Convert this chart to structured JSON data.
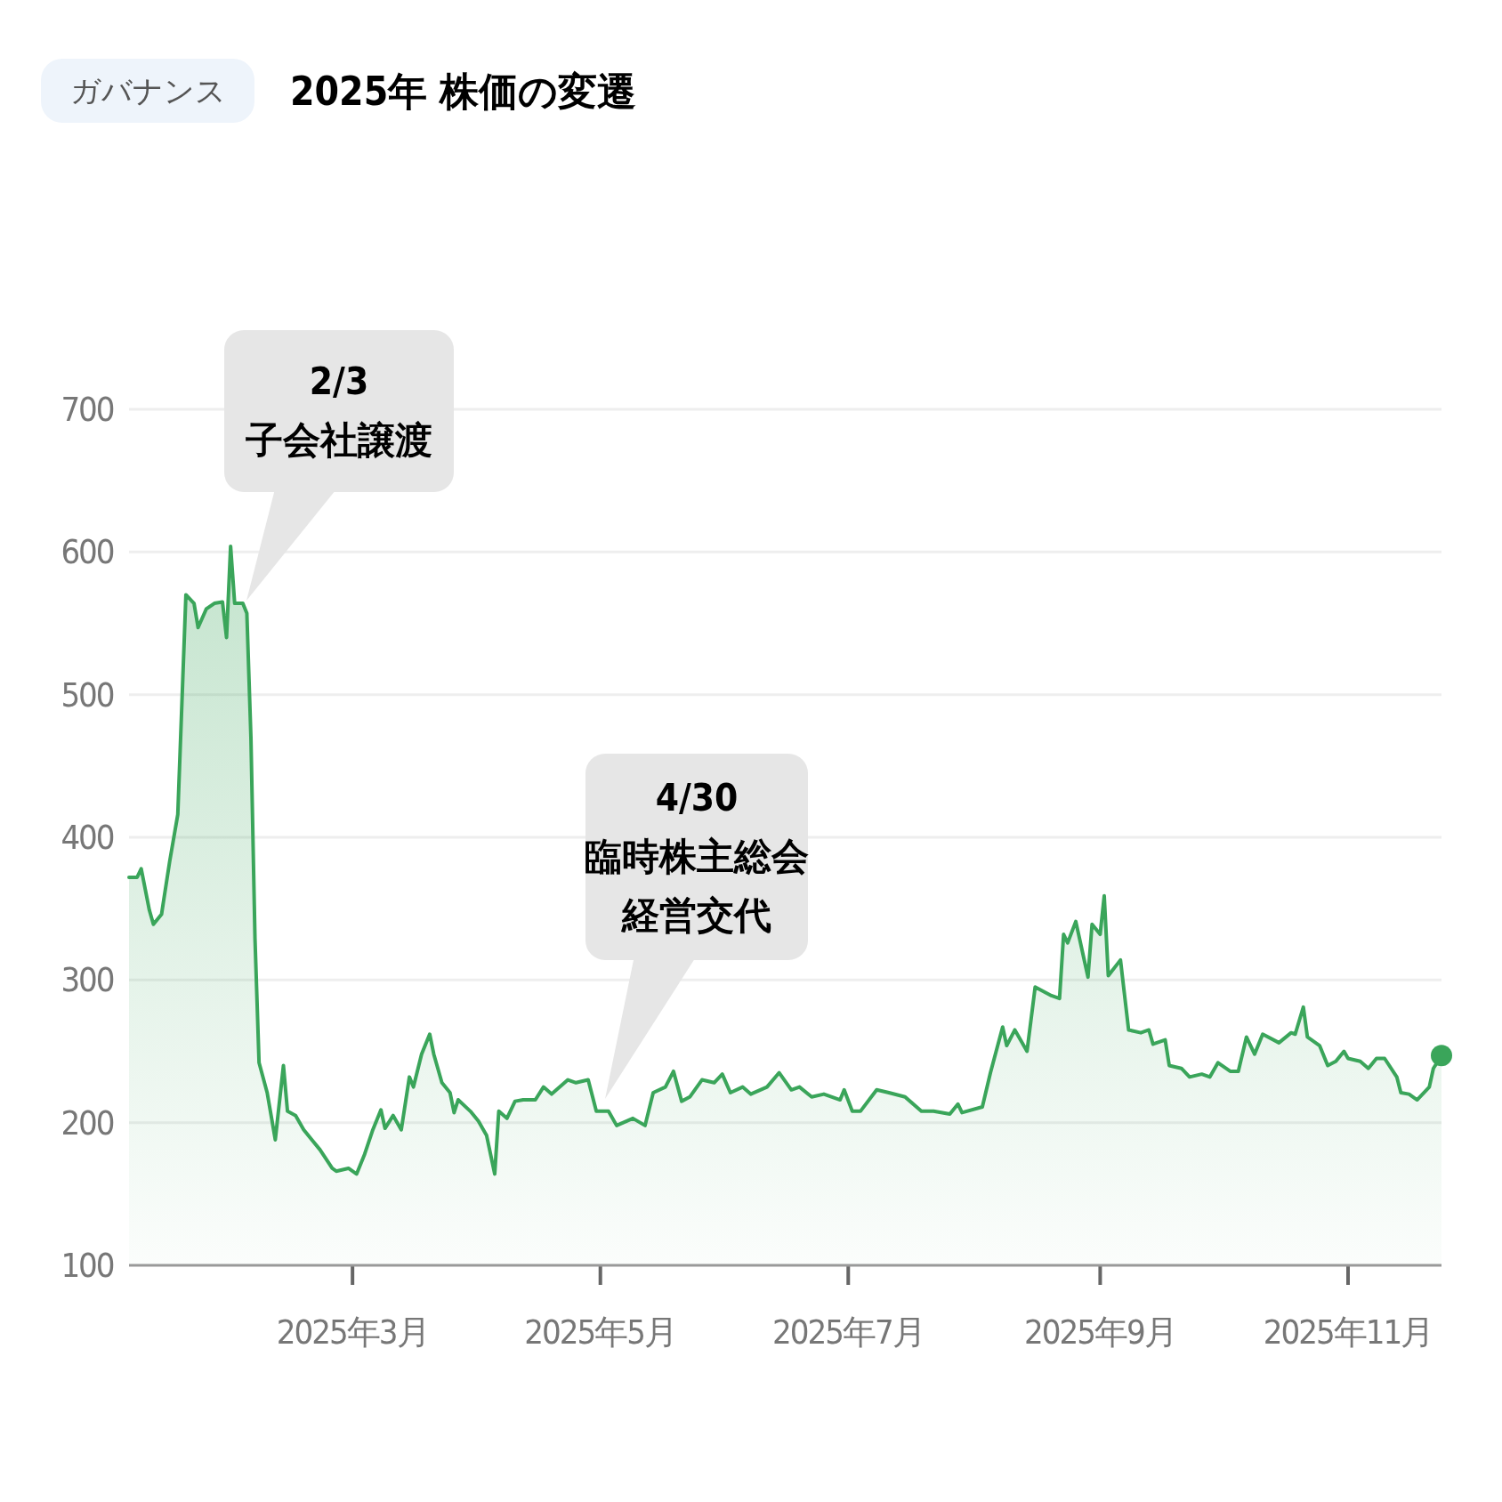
{
  "chart_data": {
    "type": "area",
    "title": "2025年 株価の変遷",
    "subtitle": "ガバナンス",
    "xlim": [
      "2025-01-05",
      "2025-11-24"
    ],
    "ylim": [
      100,
      700
    ],
    "xticks": [
      {
        "value": "2025-03-01",
        "label": "2025年3月"
      },
      {
        "value": "2025-05-01",
        "label": "2025年5月"
      },
      {
        "value": "2025-07-01",
        "label": "2025年7月"
      },
      {
        "value": "2025-09-01",
        "label": "2025年9月"
      },
      {
        "value": "2025-11-01",
        "label": "2025年11月"
      }
    ],
    "yticks": [
      100,
      200,
      300,
      400,
      500,
      600,
      700
    ],
    "grid": "y",
    "annotations": [
      "2/3\n子会社譲渡",
      "4/30\n臨時株主総会経営交代"
    ],
    "series": [
      {
        "color": "#3aa55a",
        "x": [
          "2025-01-05",
          "2025-01-07",
          "2025-01-08",
          "2025-01-10",
          "2025-01-11",
          "2025-01-13",
          "2025-01-15",
          "2025-01-17",
          "2025-01-19",
          "2025-01-21",
          "2025-01-22",
          "2025-01-24",
          "2025-01-26",
          "2025-01-28",
          "2025-01-29",
          "2025-01-30",
          "2025-01-31",
          "2025-02-02",
          "2025-02-03",
          "2025-02-04",
          "2025-02-05",
          "2025-02-06",
          "2025-02-08",
          "2025-02-10",
          "2025-02-12",
          "2025-02-13",
          "2025-02-15",
          "2025-02-17",
          "2025-02-19",
          "2025-02-21",
          "2025-02-24",
          "2025-02-25",
          "2025-02-28",
          "2025-03-02",
          "2025-03-04",
          "2025-03-06",
          "2025-03-08",
          "2025-03-09",
          "2025-03-11",
          "2025-03-13",
          "2025-03-15",
          "2025-03-16",
          "2025-03-18",
          "2025-03-20",
          "2025-03-21",
          "2025-03-23",
          "2025-03-25",
          "2025-03-26",
          "2025-03-27",
          "2025-03-30",
          "2025-04-01",
          "2025-04-03",
          "2025-04-05",
          "2025-04-06",
          "2025-04-08",
          "2025-04-10",
          "2025-04-12",
          "2025-04-15",
          "2025-04-17",
          "2025-04-19",
          "2025-04-23",
          "2025-04-25",
          "2025-04-28",
          "2025-04-30",
          "2025-05-03",
          "2025-05-05",
          "2025-05-09",
          "2025-05-12",
          "2025-05-14",
          "2025-05-17",
          "2025-05-19",
          "2025-05-21",
          "2025-05-23",
          "2025-05-26",
          "2025-05-29",
          "2025-05-31",
          "2025-06-02",
          "2025-06-05",
          "2025-06-07",
          "2025-06-11",
          "2025-06-14",
          "2025-06-17",
          "2025-06-19",
          "2025-06-22",
          "2025-06-25",
          "2025-06-29",
          "2025-06-30",
          "2025-07-02",
          "2025-07-04",
          "2025-07-08",
          "2025-07-11",
          "2025-07-15",
          "2025-07-19",
          "2025-07-22",
          "2025-07-26",
          "2025-07-28",
          "2025-07-29",
          "2025-08-03",
          "2025-08-05",
          "2025-08-08",
          "2025-08-09",
          "2025-08-11",
          "2025-08-14",
          "2025-08-16",
          "2025-08-20",
          "2025-08-22",
          "2025-08-23",
          "2025-08-24",
          "2025-08-26",
          "2025-08-28",
          "2025-08-29",
          "2025-08-30",
          "2025-09-01",
          "2025-09-02",
          "2025-09-03",
          "2025-09-06",
          "2025-09-08",
          "2025-09-11",
          "2025-09-13",
          "2025-09-14",
          "2025-09-17",
          "2025-09-18",
          "2025-09-21",
          "2025-09-23",
          "2025-09-26",
          "2025-09-28",
          "2025-09-30",
          "2025-10-03",
          "2025-10-05",
          "2025-10-07",
          "2025-10-09",
          "2025-10-11",
          "2025-10-15",
          "2025-10-18",
          "2025-10-19",
          "2025-10-21",
          "2025-10-22",
          "2025-10-25",
          "2025-10-27",
          "2025-10-29",
          "2025-10-31",
          "2025-11-01",
          "2025-11-04",
          "2025-11-06",
          "2025-11-08",
          "2025-11-10",
          "2025-11-13",
          "2025-11-14",
          "2025-11-16",
          "2025-11-18",
          "2025-11-21",
          "2025-11-22",
          "2025-11-24"
        ],
        "values": [
          372,
          372,
          378,
          349,
          339,
          346,
          383,
          416,
          570,
          564,
          547,
          560,
          564,
          565,
          540,
          604,
          564,
          564,
          557,
          470,
          329,
          242,
          221,
          188,
          240,
          208,
          205,
          195,
          188,
          181,
          168,
          166,
          168,
          164,
          178,
          195,
          209,
          196,
          205,
          195,
          232,
          225,
          248,
          262,
          248,
          228,
          221,
          207,
          216,
          208,
          201,
          191,
          164,
          208,
          203,
          215,
          216,
          216,
          225,
          220,
          230,
          228,
          230,
          208,
          208,
          198,
          203,
          198,
          221,
          225,
          236,
          215,
          218,
          230,
          228,
          234,
          221,
          225,
          220,
          225,
          235,
          223,
          225,
          218,
          220,
          216,
          223,
          208,
          208,
          223,
          221,
          218,
          208,
          208,
          206,
          213,
          207,
          211,
          235,
          267,
          254,
          265,
          250,
          295,
          289,
          287,
          332,
          326,
          341,
          315,
          302,
          339,
          332,
          359,
          303,
          314,
          265,
          263,
          265,
          255,
          258,
          240,
          238,
          232,
          234,
          232,
          242,
          236,
          236,
          260,
          248,
          262,
          256,
          263,
          262,
          281,
          260,
          254,
          240,
          243,
          250,
          245,
          243,
          238,
          245,
          245,
          232,
          221,
          220,
          216,
          225,
          238,
          247
        ]
      },
      {
        "type": "scatter",
        "color": "#3aa55a",
        "x": [
          "2025-11-24"
        ],
        "values": [
          247
        ]
      }
    ]
  }
}
